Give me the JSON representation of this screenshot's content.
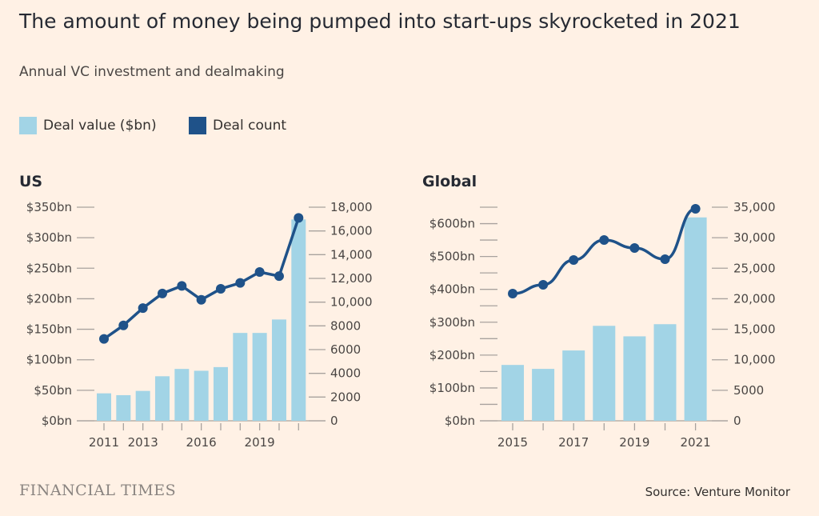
{
  "title": "The amount of money being pumped into start-ups skyrocketed in 2021",
  "subtitle": "Annual VC investment and dealmaking",
  "legend": [
    {
      "label": "Deal value ($bn)",
      "color": "#a2d4e6"
    },
    {
      "label": "Deal count",
      "color": "#1f5289"
    }
  ],
  "footer": {
    "brand": "FINANCIAL TIMES",
    "source": "Source: Venture Monitor"
  },
  "chart_data": [
    {
      "type": "bar+line",
      "title": "US",
      "categories": [
        "2011",
        "2012",
        "2013",
        "2014",
        "2015",
        "2016",
        "2017",
        "2018",
        "2019",
        "2020",
        "2021"
      ],
      "xtick_labels": [
        "2011",
        "2013",
        "2016",
        "2019"
      ],
      "series": [
        {
          "name": "Deal value ($bn)",
          "axis": "left",
          "values": [
            45,
            42,
            49,
            73,
            85,
            82,
            88,
            144,
            144,
            166,
            330
          ]
        },
        {
          "name": "Deal count",
          "axis": "right",
          "values": [
            6900,
            8040,
            9500,
            10730,
            11370,
            10200,
            11120,
            11620,
            12540,
            12190,
            17100
          ]
        }
      ],
      "left_axis": {
        "ylim": [
          0,
          350
        ],
        "ticks": [
          0,
          50,
          100,
          150,
          200,
          250,
          300,
          350
        ],
        "labels": [
          "$0bn",
          "$50bn",
          "$100bn",
          "$150bn",
          "$200bn",
          "$250bn",
          "$300bn",
          "$350bn"
        ]
      },
      "right_axis": {
        "ylim": [
          0,
          18000
        ],
        "ticks": [
          0,
          2000,
          4000,
          6000,
          8000,
          10000,
          12000,
          14000,
          16000,
          18000
        ],
        "labels": [
          "0",
          "2000",
          "4000",
          "6000",
          "8000",
          "10,000",
          "12,000",
          "14,000",
          "16,000",
          "18,000"
        ]
      }
    },
    {
      "type": "bar+line",
      "title": "Global",
      "categories": [
        "2015",
        "2016",
        "2017",
        "2018",
        "2019",
        "2020",
        "2021"
      ],
      "xtick_labels": [
        "2015",
        "2017",
        "2019",
        "2021"
      ],
      "series": [
        {
          "name": "Deal value ($bn)",
          "axis": "left",
          "values": [
            170,
            158,
            214,
            289,
            257,
            294,
            619
          ]
        },
        {
          "name": "Deal count",
          "axis": "right",
          "values": [
            20840,
            22290,
            26350,
            29620,
            28310,
            26480,
            34740
          ]
        }
      ],
      "left_axis": {
        "ylim": [
          0,
          650
        ],
        "ticks": [
          0,
          50,
          100,
          150,
          200,
          250,
          300,
          350,
          400,
          450,
          500,
          550,
          600,
          650
        ],
        "labels": [
          "$0bn",
          "",
          "$100bn",
          "",
          "$200bn",
          "",
          "$300bn",
          "",
          "$400bn",
          "",
          "$500bn",
          "",
          "$600bn",
          ""
        ]
      },
      "right_axis": {
        "ylim": [
          0,
          35000
        ],
        "ticks": [
          0,
          5000,
          10000,
          15000,
          20000,
          25000,
          30000,
          35000
        ],
        "labels": [
          "0",
          "5000",
          "10,000",
          "15,000",
          "20,000",
          "25,000",
          "30,000",
          "35,000"
        ]
      }
    }
  ]
}
